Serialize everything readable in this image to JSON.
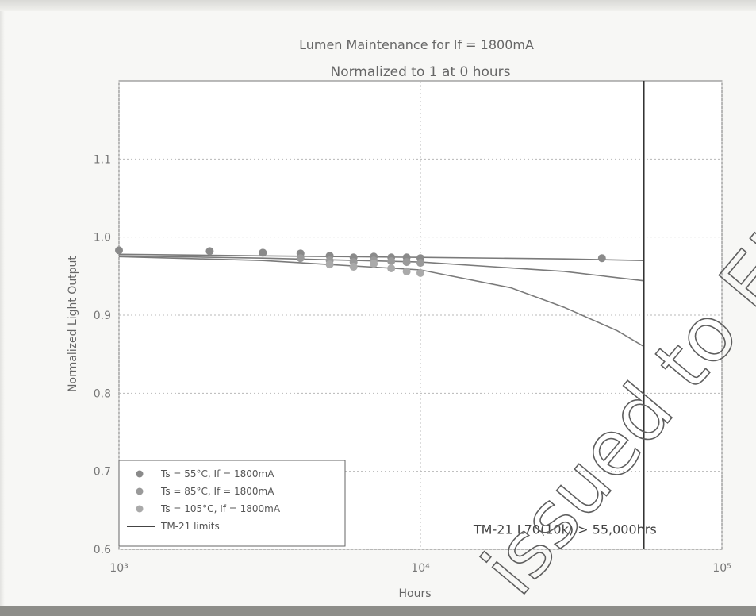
{
  "chart_data": {
    "type": "scatter",
    "title": "Lumen Maintenance for If = 1800mA",
    "subtitle": "Normalized to 1 at 0 hours",
    "xlabel": "Hours",
    "ylabel": "Normalized Light Output",
    "x_scale": "log",
    "xlim": [
      1000,
      100000
    ],
    "ylim": [
      0.6,
      1.2
    ],
    "x_ticks": [
      {
        "value": 1000,
        "label": "10³"
      },
      {
        "value": 10000,
        "label": "10⁴"
      },
      {
        "value": 100000,
        "label": "10⁵"
      }
    ],
    "y_ticks": [
      {
        "value": 0.6,
        "label": "0.6"
      },
      {
        "value": 0.7,
        "label": "0.7"
      },
      {
        "value": 0.8,
        "label": "0.8"
      },
      {
        "value": 0.9,
        "label": "0.9"
      },
      {
        "value": 1.0,
        "label": "1.0"
      },
      {
        "value": 1.1,
        "label": "1.1"
      }
    ],
    "grid": true,
    "legend_position": "lower-left",
    "series": [
      {
        "name": "Ts = 55°C, If = 1800mA",
        "color": "#8a8a8a",
        "points": [
          {
            "x": 1000,
            "y": 0.983
          },
          {
            "x": 2000,
            "y": 0.982
          },
          {
            "x": 3000,
            "y": 0.98
          },
          {
            "x": 4000,
            "y": 0.979
          },
          {
            "x": 5000,
            "y": 0.976
          },
          {
            "x": 6000,
            "y": 0.974
          },
          {
            "x": 7000,
            "y": 0.975
          },
          {
            "x": 8000,
            "y": 0.974
          },
          {
            "x": 9000,
            "y": 0.974
          },
          {
            "x": 10000,
            "y": 0.973
          },
          {
            "x": 40000,
            "y": 0.973
          }
        ]
      },
      {
        "name": "Ts = 85°C, If = 1800mA",
        "color": "#9a9a9a",
        "points": [
          {
            "x": 4000,
            "y": 0.973
          },
          {
            "x": 5000,
            "y": 0.97
          },
          {
            "x": 6000,
            "y": 0.968
          },
          {
            "x": 7000,
            "y": 0.97
          },
          {
            "x": 8000,
            "y": 0.969
          },
          {
            "x": 9000,
            "y": 0.968
          },
          {
            "x": 10000,
            "y": 0.967
          }
        ]
      },
      {
        "name": "Ts = 105°C, If = 1800mA",
        "color": "#aaaaaa",
        "points": [
          {
            "x": 5000,
            "y": 0.965
          },
          {
            "x": 6000,
            "y": 0.962
          },
          {
            "x": 7000,
            "y": 0.966
          },
          {
            "x": 8000,
            "y": 0.96
          },
          {
            "x": 9000,
            "y": 0.956
          },
          {
            "x": 10000,
            "y": 0.954
          }
        ]
      }
    ],
    "fit_lines": {
      "name": "TM-21 limits",
      "color": "#7a7a7a",
      "lines": [
        {
          "points": [
            {
              "x": 1000,
              "y": 0.978
            },
            {
              "x": 3000,
              "y": 0.976
            },
            {
              "x": 10000,
              "y": 0.974
            },
            {
              "x": 30000,
              "y": 0.972
            },
            {
              "x": 55000,
              "y": 0.97
            }
          ]
        },
        {
          "points": [
            {
              "x": 1000,
              "y": 0.976
            },
            {
              "x": 3000,
              "y": 0.973
            },
            {
              "x": 10000,
              "y": 0.968
            },
            {
              "x": 30000,
              "y": 0.956
            },
            {
              "x": 55000,
              "y": 0.944
            }
          ]
        },
        {
          "points": [
            {
              "x": 1000,
              "y": 0.975
            },
            {
              "x": 3000,
              "y": 0.97
            },
            {
              "x": 10000,
              "y": 0.958
            },
            {
              "x": 20000,
              "y": 0.935
            },
            {
              "x": 30000,
              "y": 0.91
            },
            {
              "x": 45000,
              "y": 0.88
            },
            {
              "x": 55000,
              "y": 0.86
            }
          ]
        }
      ]
    },
    "vertical_line": {
      "x": 55000,
      "color": "#333333"
    },
    "annotation": {
      "text": "TM-21 L70(10k) > 55,000hrs",
      "x": 15000,
      "y": 0.625
    },
    "watermark": {
      "text": "issued to ELET"
    }
  }
}
